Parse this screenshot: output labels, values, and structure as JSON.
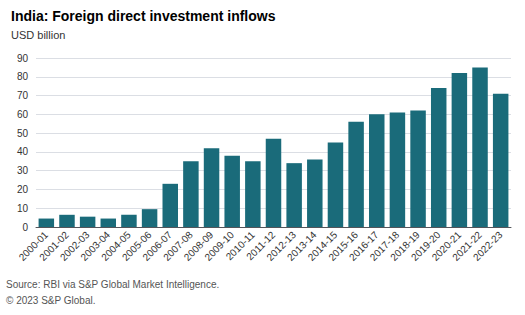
{
  "chart_data": {
    "type": "bar",
    "title": "India: Foreign direct investment inflows",
    "ylabel": "USD billion",
    "categories": [
      "2000-01",
      "2001-02",
      "2002-03",
      "2003-04",
      "2004-05",
      "2005-06",
      "2006-07",
      "2007-08",
      "2008-09",
      "2009-10",
      "2010-11",
      "2011-12",
      "2012-13",
      "2013-14",
      "2014-15",
      "2015-16",
      "2016-17",
      "2017-18",
      "2018-19",
      "2019-20",
      "2020-21",
      "2021-22",
      "2022-23"
    ],
    "values": [
      4.5,
      6.5,
      5.5,
      4.5,
      6.5,
      9.5,
      23,
      35,
      42,
      38,
      35,
      47,
      34,
      36,
      45,
      56,
      60,
      61,
      62,
      74,
      82,
      85,
      71
    ],
    "color": "#1a6b7a",
    "ylim": [
      0,
      90
    ],
    "yticks": [
      0,
      10,
      20,
      30,
      40,
      50,
      60,
      70,
      80,
      90
    ],
    "grid": true,
    "annotations": [
      "Source: RBI via S&P Global Market Intelligence.",
      "© 2023 S&P Global."
    ]
  }
}
